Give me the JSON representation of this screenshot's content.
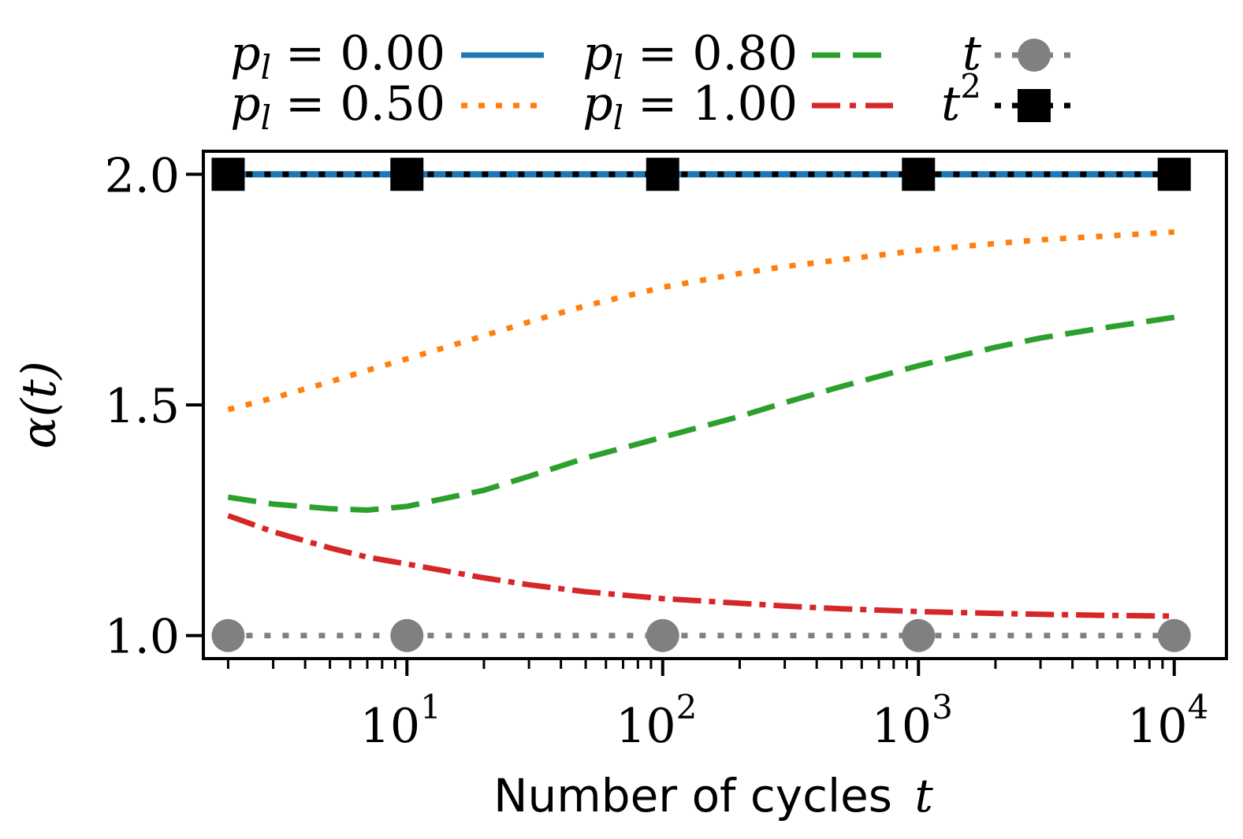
{
  "chart_data": {
    "type": "line",
    "xscale": "log",
    "xlabel": "Number of cycles",
    "xlabel_var": "t",
    "ylabel": "α(t)",
    "xlim": [
      1.6,
      16000
    ],
    "ylim": [
      0.95,
      2.05
    ],
    "x": [
      2,
      3,
      5,
      7,
      10,
      20,
      30,
      50,
      100,
      200,
      300,
      500,
      1000,
      2000,
      3000,
      5000,
      10000
    ],
    "yticks": [
      {
        "value": 1.0,
        "label": "1.0"
      },
      {
        "value": 1.5,
        "label": "1.5"
      },
      {
        "value": 2.0,
        "label": "2.0"
      }
    ],
    "xticks": [
      {
        "value": 10,
        "base": "10",
        "exp": "1"
      },
      {
        "value": 100,
        "base": "10",
        "exp": "2"
      },
      {
        "value": 1000,
        "base": "10",
        "exp": "3"
      },
      {
        "value": 10000,
        "base": "10",
        "exp": "4"
      }
    ],
    "series": [
      {
        "name": "p_l = 0.00",
        "label_var": "p",
        "label_sub": "l",
        "label_value": "= 0.00",
        "color": "#1f77b4",
        "style": "solid",
        "marker": "none",
        "values": [
          2.0,
          2.0,
          2.0,
          2.0,
          2.0,
          2.0,
          2.0,
          2.0,
          2.0,
          2.0,
          2.0,
          2.0,
          2.0,
          2.0,
          2.0,
          2.0,
          2.0
        ]
      },
      {
        "name": "p_l = 0.50",
        "label_var": "p",
        "label_sub": "l",
        "label_value": "= 0.50",
        "color": "#ff7f0e",
        "style": "dotted",
        "marker": "none",
        "values": [
          1.49,
          1.515,
          1.55,
          1.575,
          1.6,
          1.65,
          1.68,
          1.715,
          1.755,
          1.785,
          1.8,
          1.815,
          1.835,
          1.85,
          1.858,
          1.865,
          1.875
        ]
      },
      {
        "name": "p_l = 0.80",
        "label_var": "p",
        "label_sub": "l",
        "label_value": "= 0.80",
        "color": "#2ca02c",
        "style": "dashed",
        "marker": "none",
        "values": [
          1.3,
          1.285,
          1.275,
          1.272,
          1.28,
          1.315,
          1.345,
          1.385,
          1.43,
          1.475,
          1.505,
          1.54,
          1.585,
          1.625,
          1.645,
          1.665,
          1.69
        ]
      },
      {
        "name": "p_l = 1.00",
        "label_var": "p",
        "label_sub": "l",
        "label_value": "= 1.00",
        "color": "#d62728",
        "style": "dashdot",
        "marker": "none",
        "values": [
          1.26,
          1.225,
          1.19,
          1.17,
          1.155,
          1.125,
          1.11,
          1.095,
          1.08,
          1.07,
          1.064,
          1.058,
          1.052,
          1.048,
          1.046,
          1.044,
          1.042
        ]
      },
      {
        "name": "t",
        "label_var": "t",
        "label_sup": "",
        "label_value": "",
        "color": "#808080",
        "style": "dotted",
        "marker": "circle",
        "marker_x": [
          2,
          10,
          100,
          1000,
          10000
        ],
        "values": [
          1.0,
          1.0,
          1.0,
          1.0,
          1.0,
          1.0,
          1.0,
          1.0,
          1.0,
          1.0,
          1.0,
          1.0,
          1.0,
          1.0,
          1.0,
          1.0,
          1.0
        ]
      },
      {
        "name": "t^2",
        "label_var": "t",
        "label_sup": "2",
        "label_value": "",
        "color": "#000000",
        "style": "dotted",
        "marker": "square",
        "marker_x": [
          2,
          10,
          100,
          1000,
          10000
        ],
        "values": [
          2.0,
          2.0,
          2.0,
          2.0,
          2.0,
          2.0,
          2.0,
          2.0,
          2.0,
          2.0,
          2.0,
          2.0,
          2.0,
          2.0,
          2.0,
          2.0,
          2.0
        ]
      }
    ],
    "legend_position": "top, outside plot, 3 columns"
  }
}
